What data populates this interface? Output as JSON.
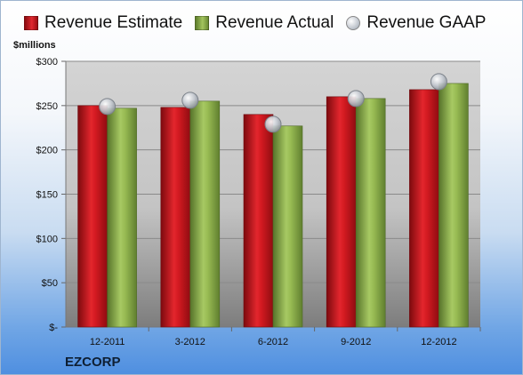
{
  "legend": [
    {
      "label": "Revenue Estimate",
      "kind": "bar",
      "color": "#d0141c"
    },
    {
      "label": "Revenue Actual",
      "kind": "bar",
      "color": "#8cb04a"
    },
    {
      "label": "Revenue GAAP",
      "kind": "marker",
      "color": "#b9bfc8"
    }
  ],
  "unit_label": "$millions",
  "brand_label": "EZCORP",
  "chart_data": {
    "type": "bar",
    "title": "",
    "xlabel": "",
    "ylabel": "$millions",
    "ylim": [
      0,
      300
    ],
    "y_ticks": [
      0,
      50,
      100,
      150,
      200,
      250,
      300
    ],
    "y_tick_labels": [
      "$-",
      "$50",
      "$100",
      "$150",
      "$200",
      "$250",
      "$300"
    ],
    "grid": true,
    "legend_position": "top",
    "categories": [
      "12-2011",
      "3-2012",
      "6-2012",
      "9-2012",
      "12-2012"
    ],
    "series": [
      {
        "name": "Revenue Estimate",
        "kind": "bar",
        "color": "#d0141c",
        "values": [
          250,
          248,
          240,
          260,
          268
        ]
      },
      {
        "name": "Revenue Actual",
        "kind": "bar",
        "color": "#8cb04a",
        "values": [
          247,
          255,
          227,
          258,
          275
        ]
      },
      {
        "name": "Revenue GAAP",
        "kind": "marker",
        "color": "#b9bfc8",
        "values": [
          249,
          256,
          229,
          258,
          277
        ]
      }
    ]
  }
}
